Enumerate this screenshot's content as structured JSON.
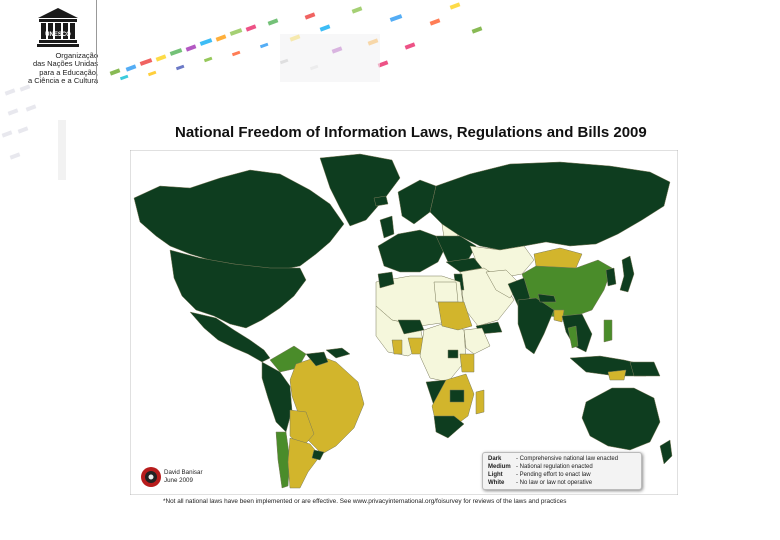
{
  "header": {
    "logo": {
      "acronym": "UNESCO",
      "lines": [
        "Organização",
        "das Nações Unidas",
        "para a Educação,",
        "a Ciência e a Cultura"
      ]
    }
  },
  "slide": {
    "title": "National Freedom of Information Laws, Regulations and Bills 2009",
    "footnote": "*Not all national laws have been implemented or are effective. See www.privacyinternational.org/foisurvey for reviews of the laws and practices"
  },
  "map": {
    "colors": {
      "ocean": "#ffffff",
      "dark": "#0e3d1f",
      "medium": "#4a8c2a",
      "light": "#d2b52c",
      "white": "#f5f7dc",
      "border": "#7a7a5a"
    },
    "legend": [
      {
        "key": "Dark",
        "desc": "- Comprehensive national law enacted"
      },
      {
        "key": "Medium",
        "desc": "- National regulation enacted"
      },
      {
        "key": "Light",
        "desc": "- Pending effort to enact law"
      },
      {
        "key": "White",
        "desc": "- No law or law not operative"
      }
    ],
    "credit": {
      "name": "David Banisar",
      "date": "June 2009"
    }
  }
}
